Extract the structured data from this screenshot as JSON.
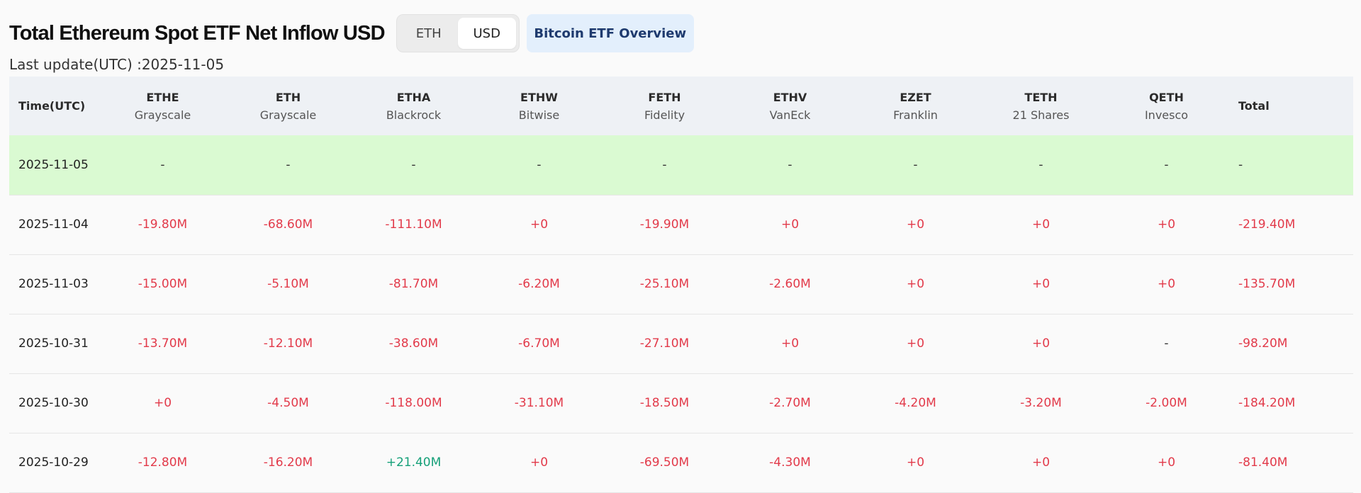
{
  "header": {
    "title": "Total Ethereum Spot ETF Net Inflow USD",
    "toggle": {
      "options": [
        "ETH",
        "USD"
      ],
      "active_index": 1
    },
    "overview_button": "Bitcoin ETF Overview"
  },
  "last_update": "Last update(UTC) :2025-11-05",
  "colors": {
    "negative": "#e23a4a",
    "positive": "#16a079",
    "today_row": "#dafad2",
    "header_bg": "#eef1f5"
  },
  "table": {
    "columns": [
      {
        "ticker": "Time(UTC)",
        "issuer": ""
      },
      {
        "ticker": "ETHE",
        "issuer": "Grayscale"
      },
      {
        "ticker": "ETH",
        "issuer": "Grayscale"
      },
      {
        "ticker": "ETHA",
        "issuer": "Blackrock"
      },
      {
        "ticker": "ETHW",
        "issuer": "Bitwise"
      },
      {
        "ticker": "FETH",
        "issuer": "Fidelity"
      },
      {
        "ticker": "ETHV",
        "issuer": "VanEck"
      },
      {
        "ticker": "EZET",
        "issuer": "Franklin"
      },
      {
        "ticker": "TETH",
        "issuer": "21 Shares"
      },
      {
        "ticker": "QETH",
        "issuer": "Invesco"
      },
      {
        "ticker": "Total",
        "issuer": ""
      }
    ],
    "rows": [
      {
        "date": "2025-11-05",
        "values": [
          "-",
          "-",
          "-",
          "-",
          "-",
          "-",
          "-",
          "-",
          "-",
          "-"
        ]
      },
      {
        "date": "2025-11-04",
        "values": [
          "-19.80M",
          "-68.60M",
          "-111.10M",
          "+0",
          "-19.90M",
          "+0",
          "+0",
          "+0",
          "+0",
          "-219.40M"
        ]
      },
      {
        "date": "2025-11-03",
        "values": [
          "-15.00M",
          "-5.10M",
          "-81.70M",
          "-6.20M",
          "-25.10M",
          "-2.60M",
          "+0",
          "+0",
          "+0",
          "-135.70M"
        ]
      },
      {
        "date": "2025-10-31",
        "values": [
          "-13.70M",
          "-12.10M",
          "-38.60M",
          "-6.70M",
          "-27.10M",
          "+0",
          "+0",
          "+0",
          "-",
          "-98.20M"
        ]
      },
      {
        "date": "2025-10-30",
        "values": [
          "+0",
          "-4.50M",
          "-118.00M",
          "-31.10M",
          "-18.50M",
          "-2.70M",
          "-4.20M",
          "-3.20M",
          "-2.00M",
          "-184.20M"
        ]
      },
      {
        "date": "2025-10-29",
        "values": [
          "-12.80M",
          "-16.20M",
          "+21.40M",
          "+0",
          "-69.50M",
          "-4.30M",
          "+0",
          "+0",
          "+0",
          "-81.40M"
        ]
      }
    ]
  }
}
